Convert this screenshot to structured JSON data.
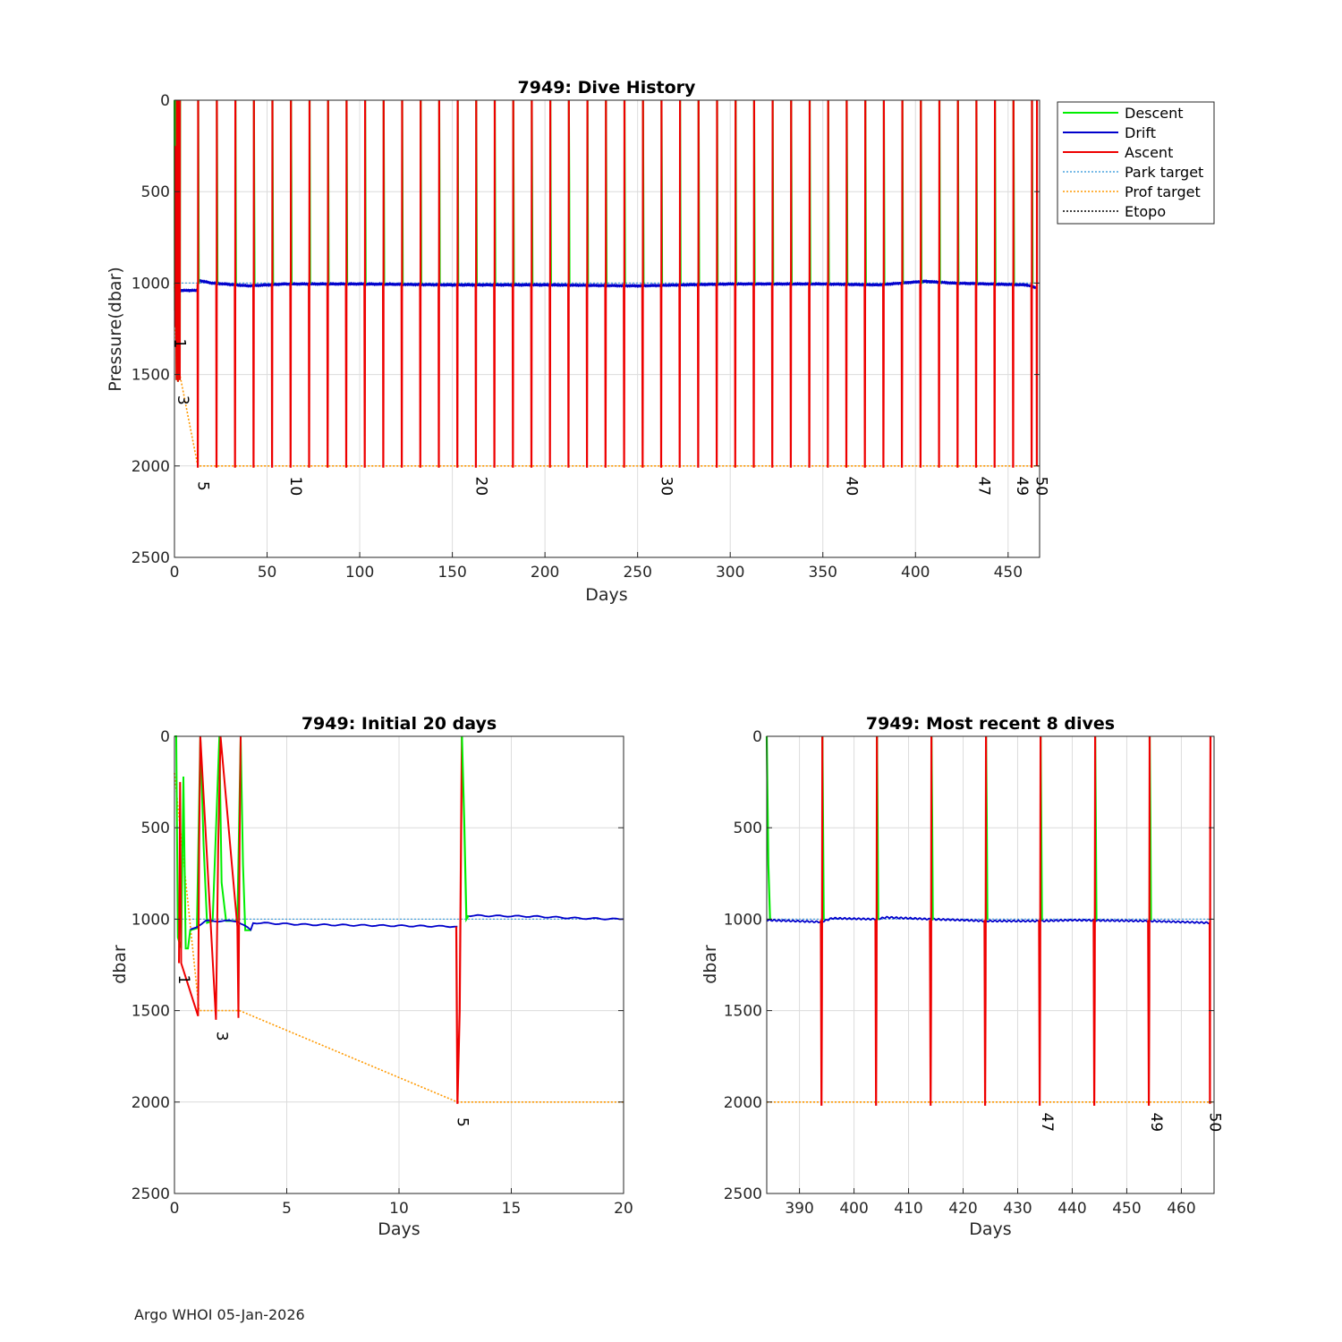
{
  "footer": "Argo WHOI 05-Jan-2026",
  "colors": {
    "descent": "#00ee00",
    "drift": "#0000cc",
    "ascent": "#ee0000",
    "park_target": "#4aa3df",
    "prof_target": "#ff9900",
    "etopo": "#000000"
  },
  "legend": [
    "Descent",
    "Drift",
    "Ascent",
    "Park target",
    "Prof target",
    "Etopo"
  ],
  "chart_data": [
    {
      "type": "line",
      "title": "7949: Dive History",
      "xlabel": "Days",
      "ylabel": "Pressure(dbar)",
      "xlim": [
        0,
        467
      ],
      "ylim": [
        0,
        2500
      ],
      "y_reversed": true,
      "grid": true,
      "legend_position": "outside-right",
      "xticks": [
        0,
        50,
        100,
        150,
        200,
        250,
        300,
        350,
        400,
        450
      ],
      "yticks": [
        0,
        500,
        1000,
        1500,
        2000,
        2500
      ],
      "park_target": [
        [
          0,
          1000
        ],
        [
          467,
          1000
        ]
      ],
      "prof_target": [
        [
          0,
          1000
        ],
        [
          1.2,
          1500
        ],
        [
          2.9,
          1500
        ],
        [
          12.6,
          2000
        ],
        [
          467,
          2000
        ]
      ],
      "drift_points": [
        [
          0.5,
          1010
        ],
        [
          3,
          1040
        ],
        [
          12.6,
          1040
        ],
        [
          13,
          985
        ],
        [
          20,
          1000
        ],
        [
          40,
          1015
        ],
        [
          60,
          1005
        ],
        [
          100,
          1005
        ],
        [
          150,
          1010
        ],
        [
          200,
          1010
        ],
        [
          250,
          1015
        ],
        [
          300,
          1005
        ],
        [
          350,
          1005
        ],
        [
          380,
          1010
        ],
        [
          405,
          990
        ],
        [
          420,
          1000
        ],
        [
          440,
          1005
        ],
        [
          460,
          1010
        ],
        [
          465,
          1025
        ]
      ],
      "dive_days": [
        12.8,
        22.9,
        32.9,
        42.9,
        52.9,
        62.9,
        72.9,
        82.9,
        92.9,
        102.9,
        112.9,
        122.9,
        132.9,
        142.9,
        152.9,
        162.9,
        172.9,
        182.9,
        192.9,
        202.9,
        212.9,
        222.9,
        232.9,
        242.9,
        252.9,
        262.9,
        272.9,
        282.9,
        292.9,
        302.9,
        312.9,
        322.9,
        332.9,
        342.9,
        352.9,
        362.9,
        372.9,
        382.9,
        392.9,
        402.9,
        412.9,
        422.9,
        432.9,
        442.9,
        452.9,
        462.9
      ],
      "profile_labels": [
        {
          "day": 0.2,
          "p": 1330,
          "text": "1"
        },
        {
          "day": 1.9,
          "p": 1640,
          "text": "3"
        },
        {
          "day": 12.8,
          "p": 2110,
          "text": "5"
        },
        {
          "day": 62.9,
          "p": 2110,
          "text": "10"
        },
        {
          "day": 162.9,
          "p": 2110,
          "text": "20"
        },
        {
          "day": 262.9,
          "p": 2110,
          "text": "30"
        },
        {
          "day": 362.9,
          "p": 2110,
          "text": "40"
        },
        {
          "day": 434.5,
          "p": 2110,
          "text": "47"
        },
        {
          "day": 455,
          "p": 2110,
          "text": "49"
        },
        {
          "day": 465.3,
          "p": 2110,
          "text": "50"
        }
      ]
    },
    {
      "type": "line",
      "title": "7949: Initial 20 days",
      "xlabel": "Days",
      "ylabel": "dbar",
      "xlim": [
        0,
        20
      ],
      "ylim": [
        0,
        2500
      ],
      "y_reversed": true,
      "grid": true,
      "xticks": [
        0,
        5,
        10,
        15,
        20
      ],
      "yticks": [
        0,
        500,
        1000,
        1500,
        2000,
        2500
      ],
      "park_target": [
        [
          0,
          1000
        ],
        [
          20,
          1000
        ]
      ],
      "prof_target": [
        [
          0,
          200
        ],
        [
          1.1,
          1500
        ],
        [
          2.9,
          1500
        ],
        [
          12.6,
          2000
        ],
        [
          20,
          2000
        ]
      ],
      "profile_labels": [
        {
          "day": 0.2,
          "p": 1330,
          "text": "1"
        },
        {
          "day": 1.9,
          "p": 1640,
          "text": "3"
        },
        {
          "day": 12.6,
          "p": 2110,
          "text": "5"
        }
      ]
    },
    {
      "type": "line",
      "title": "7949: Most recent 8 dives",
      "xlabel": "",
      "ylabel": "dbar",
      "xlim": [
        384,
        466
      ],
      "ylim": [
        0,
        2500
      ],
      "y_reversed": true,
      "grid": true,
      "xticks": [
        390,
        400,
        410,
        420,
        430,
        440,
        450,
        460
      ],
      "yticks": [
        0,
        500,
        1000,
        1500,
        2000,
        2500
      ],
      "park_target": [
        [
          384,
          1000
        ],
        [
          466,
          1000
        ]
      ],
      "prof_target": [
        [
          384,
          2000
        ],
        [
          466,
          2000
        ]
      ],
      "dive_days": [
        394.2,
        404.2,
        414.2,
        424.2,
        434.2,
        444.2,
        454.2,
        465.3
      ],
      "profile_labels": [
        {
          "day": 434.5,
          "p": 2110,
          "text": "47"
        },
        {
          "day": 454.5,
          "p": 2110,
          "text": "49"
        },
        {
          "day": 465.3,
          "p": 2110,
          "text": "50"
        }
      ]
    }
  ]
}
